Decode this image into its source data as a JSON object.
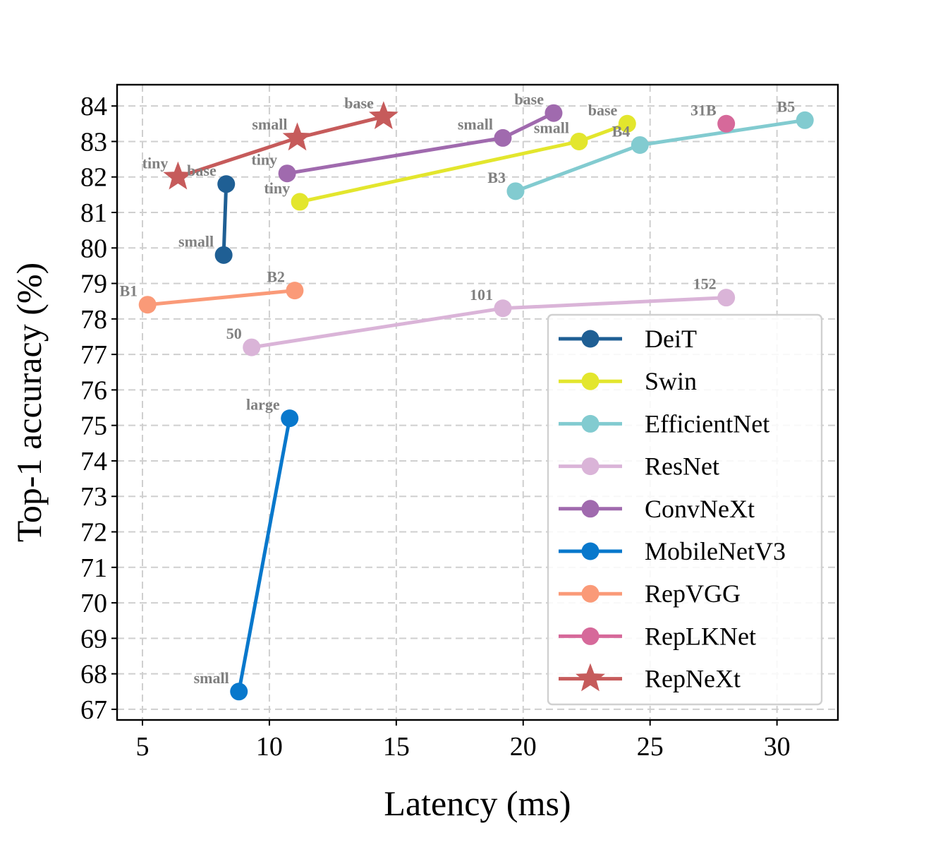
{
  "chart_data": {
    "type": "line",
    "xlabel": "Latency (ms)",
    "ylabel": "Top-1 accuracy (%)",
    "xlim": [
      4,
      32.4
    ],
    "ylim": [
      66.7,
      84.6
    ],
    "xticks": [
      "5",
      "10",
      "15",
      "20",
      "25",
      "30"
    ],
    "yticks": [
      "67",
      "68",
      "69",
      "70",
      "71",
      "72",
      "73",
      "74",
      "75",
      "76",
      "77",
      "78",
      "79",
      "80",
      "81",
      "82",
      "83",
      "84"
    ],
    "grid": true,
    "legend_position": "lower-right",
    "series": [
      {
        "name": "DeiT",
        "color": "#1f5f94",
        "marker": "circle",
        "points": [
          {
            "x": 8.2,
            "y": 79.8,
            "label": "small"
          },
          {
            "x": 8.3,
            "y": 81.8,
            "label": "base"
          }
        ]
      },
      {
        "name": "Swin",
        "color": "#e3e62d",
        "marker": "circle",
        "points": [
          {
            "x": 11.2,
            "y": 81.3,
            "label": "tiny"
          },
          {
            "x": 22.2,
            "y": 83.0,
            "label": "small"
          },
          {
            "x": 24.1,
            "y": 83.5,
            "label": "base"
          }
        ]
      },
      {
        "name": "EfficientNet",
        "color": "#82cbd0",
        "marker": "circle",
        "points": [
          {
            "x": 19.7,
            "y": 81.6,
            "label": "B3"
          },
          {
            "x": 24.6,
            "y": 82.9,
            "label": "B4"
          },
          {
            "x": 31.1,
            "y": 83.6,
            "label": "B5"
          }
        ]
      },
      {
        "name": "ResNet",
        "color": "#dab4d8",
        "marker": "circle",
        "points": [
          {
            "x": 9.3,
            "y": 77.2,
            "label": "50"
          },
          {
            "x": 19.2,
            "y": 78.3,
            "label": "101"
          },
          {
            "x": 28.0,
            "y": 78.6,
            "label": "152"
          }
        ]
      },
      {
        "name": "ConvNeXt",
        "color": "#a06aae",
        "marker": "circle",
        "points": [
          {
            "x": 10.7,
            "y": 82.1,
            "label": "tiny"
          },
          {
            "x": 19.2,
            "y": 83.1,
            "label": "small"
          },
          {
            "x": 21.2,
            "y": 83.8,
            "label": "base"
          }
        ]
      },
      {
        "name": "MobileNetV3",
        "color": "#0878cc",
        "marker": "circle",
        "points": [
          {
            "x": 8.8,
            "y": 67.5,
            "label": "small"
          },
          {
            "x": 10.8,
            "y": 75.2,
            "label": "large"
          }
        ]
      },
      {
        "name": "RepVGG",
        "color": "#fa9a78",
        "marker": "circle",
        "points": [
          {
            "x": 5.2,
            "y": 78.4,
            "label": "B1"
          },
          {
            "x": 11.0,
            "y": 78.8,
            "label": "B2"
          }
        ]
      },
      {
        "name": "RepLKNet",
        "color": "#d6699a",
        "marker": "circle",
        "points": [
          {
            "x": 28.0,
            "y": 83.5,
            "label": "31B"
          }
        ]
      },
      {
        "name": "RepNeXt",
        "color": "#c65b5b",
        "marker": "star",
        "points": [
          {
            "x": 6.4,
            "y": 82.0,
            "label": "tiny"
          },
          {
            "x": 11.1,
            "y": 83.1,
            "label": "small"
          },
          {
            "x": 14.5,
            "y": 83.7,
            "label": "base"
          }
        ]
      }
    ]
  }
}
